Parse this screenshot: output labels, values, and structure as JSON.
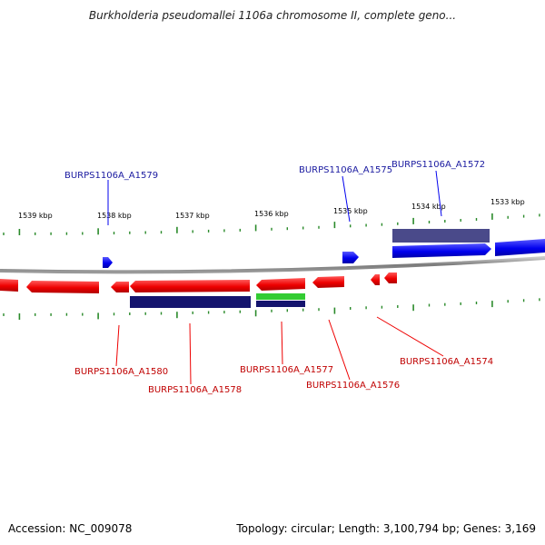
{
  "title": "Burkholderia pseudomallei 1106a chromosome II, complete geno...",
  "footer": {
    "accession": "Accession: NC_009078",
    "summary": "Topology: circular; Length: 3,100,794 bp; Genes: 3,169"
  },
  "colors": {
    "forward_gene": "#0000ee",
    "reverse_gene": "#ee0000",
    "forward_label": "#1a1aa0",
    "reverse_label": "#c00000",
    "tick": "#2a8a2a",
    "backbone": "#7a7a7a",
    "cds_dark": "#14146e",
    "cds_faded": "#4a4a8a",
    "rna_green": "#33cc33"
  },
  "ruler": [
    {
      "label": "1539 kbp"
    },
    {
      "label": "1538 kbp"
    },
    {
      "label": "1537 kbp"
    },
    {
      "label": "1536 kbp"
    },
    {
      "label": "1535 kbp"
    },
    {
      "label": "1534 kbp"
    },
    {
      "label": "1533 kbp"
    }
  ],
  "forward_labels": [
    {
      "text": "BURPS1106A_A1579"
    },
    {
      "text": "BURPS1106A_A1575"
    },
    {
      "text": "BURPS1106A_A1572"
    }
  ],
  "reverse_labels": [
    {
      "text": "BURPS1106A_A1580"
    },
    {
      "text": "BURPS1106A_A1578"
    },
    {
      "text": "BURPS1106A_A1577"
    },
    {
      "text": "BURPS1106A_A1576"
    },
    {
      "text": "BURPS1106A_A1574"
    }
  ]
}
